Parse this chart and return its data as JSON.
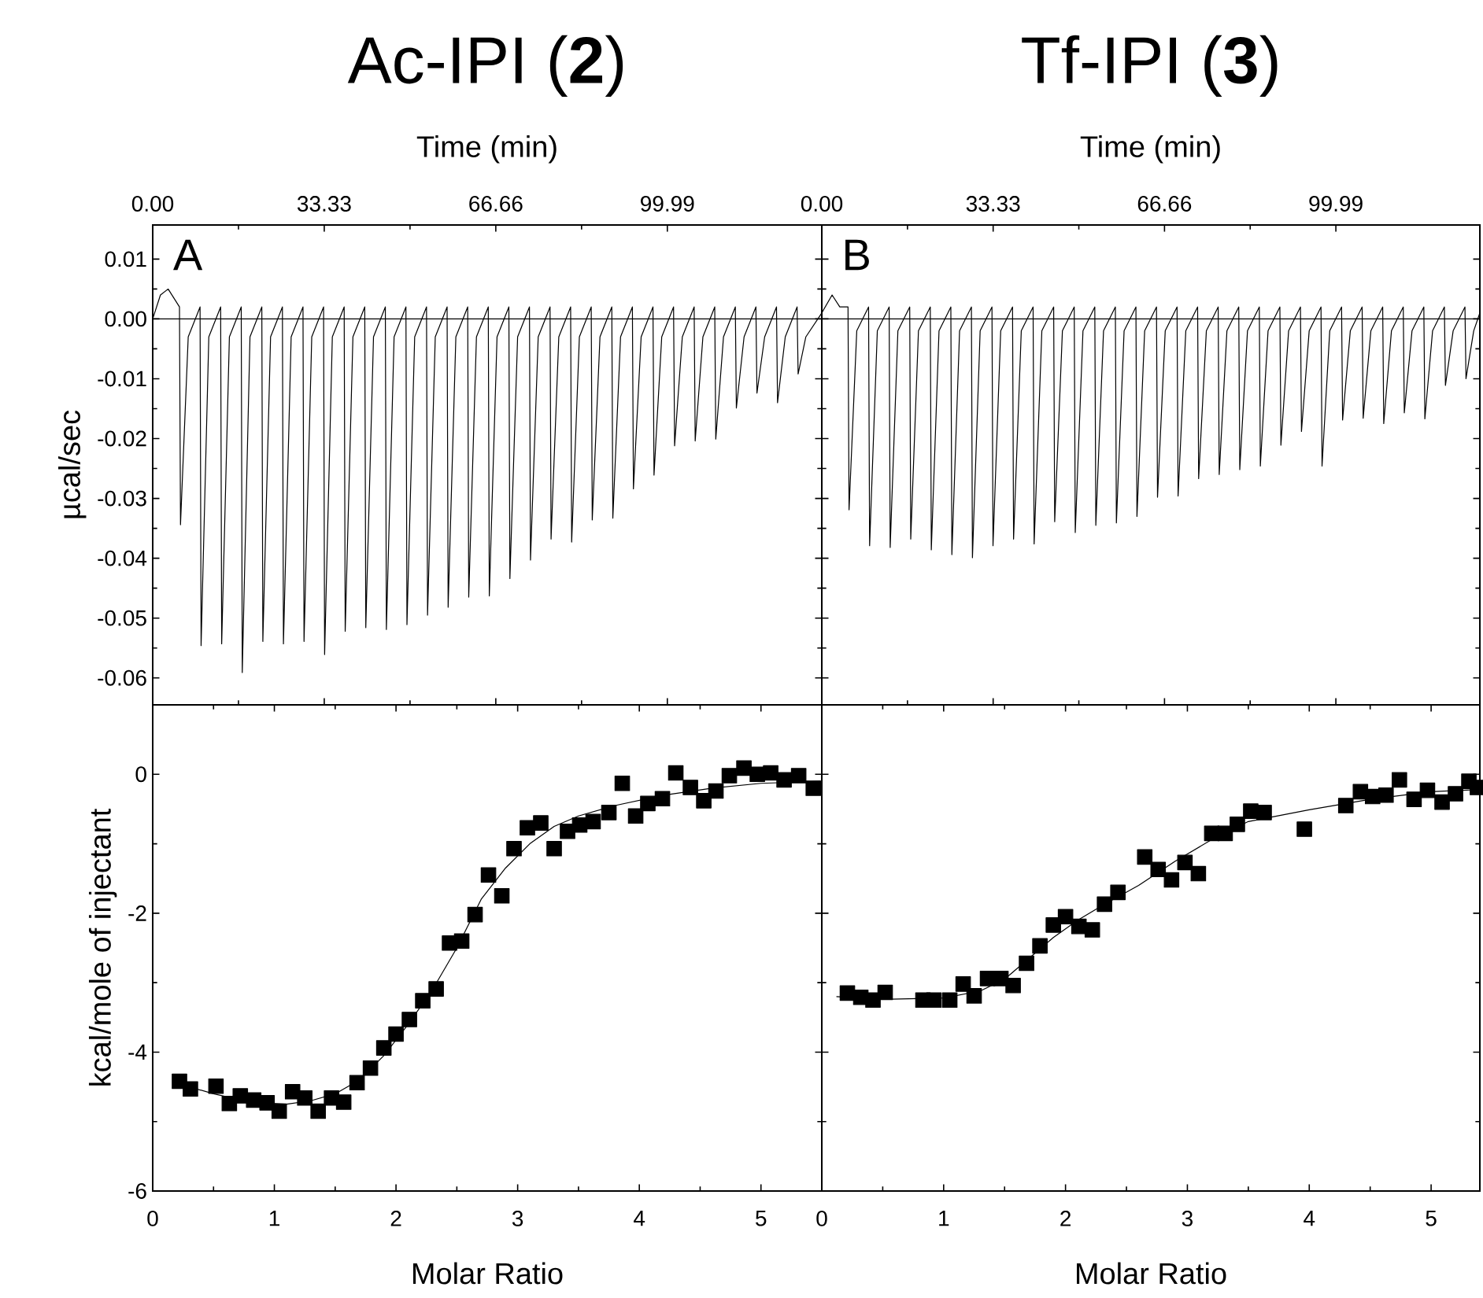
{
  "chart_data": [
    {
      "type": "line",
      "title": "Ac-IPI (**2**)",
      "xlabel": "Time (min)",
      "ylabel": "µcal/sec",
      "annotations": [
        "A"
      ],
      "xlim": [
        0,
        130
      ],
      "xticks": [
        {
          "value": 0,
          "label": "0.00"
        },
        {
          "value": 33.33,
          "label": "33.33"
        },
        {
          "value": 66.66,
          "label": "66.66"
        },
        {
          "value": 99.99,
          "label": "99.99"
        }
      ],
      "ylim": [
        -0.0645,
        0.0157
      ],
      "yticks": [
        {
          "value": 0.01,
          "label": "0.01"
        },
        {
          "value": 0,
          "label": "0.00"
        },
        {
          "value": -0.01,
          "label": "-0.01"
        },
        {
          "value": -0.02,
          "label": "-0.02"
        },
        {
          "value": -0.03,
          "label": "-0.03"
        },
        {
          "value": -0.04,
          "label": "-0.04"
        },
        {
          "value": -0.05,
          "label": "-0.05"
        },
        {
          "value": -0.06,
          "label": "-0.06"
        }
      ],
      "ref_lines": [
        {
          "axis": "y",
          "value": 0,
          "color": "#000000"
        }
      ],
      "series": [
        {
          "color": "#000000",
          "x": [
            0,
            1.5,
            3,
            5.2,
            5.4,
            6.9,
            9.2,
            9.4,
            10.9,
            13.2,
            13.4,
            14.9,
            17.2,
            17.4,
            18.9,
            21.2,
            21.4,
            22.9,
            25.2,
            25.4,
            26.9,
            29.2,
            29.4,
            30.9,
            33.2,
            33.4,
            34.9,
            37.2,
            37.4,
            38.9,
            41.2,
            41.4,
            42.9,
            45.2,
            45.4,
            46.9,
            49.2,
            49.4,
            50.9,
            53.2,
            53.4,
            54.9,
            57.2,
            57.4,
            58.9,
            61.2,
            61.4,
            62.9,
            65.2,
            65.4,
            66.9,
            69.2,
            69.4,
            70.9,
            73.2,
            73.4,
            74.9,
            77.2,
            77.4,
            78.9,
            81.2,
            81.4,
            82.9,
            85.2,
            85.4,
            86.9,
            89.2,
            89.4,
            90.9,
            93.2,
            93.4,
            94.9,
            97.2,
            97.4,
            98.9,
            101.2,
            101.4,
            102.9,
            105.2,
            105.4,
            106.9,
            109.2,
            109.4,
            110.9,
            113.2,
            113.4,
            114.9,
            117.2,
            117.4,
            118.9,
            121.2,
            121.4,
            122.9,
            125.2,
            125.4,
            126.9,
            130
          ],
          "values": [
            0,
            0.004,
            0.005,
            0.002,
            -0.0344,
            -0.003,
            0.002,
            -0.0546,
            -0.003,
            0.002,
            -0.0543,
            -0.003,
            0.002,
            -0.0591,
            -0.003,
            0.002,
            -0.0539,
            -0.003,
            0.002,
            -0.0543,
            -0.003,
            0.002,
            -0.0539,
            -0.003,
            0.002,
            -0.0561,
            -0.003,
            0.002,
            -0.0522,
            -0.003,
            0.002,
            -0.0516,
            -0.003,
            0.002,
            -0.0519,
            -0.003,
            0.002,
            -0.0511,
            -0.003,
            0.002,
            -0.0495,
            -0.003,
            0.002,
            -0.0482,
            -0.003,
            0.002,
            -0.0465,
            -0.003,
            0.002,
            -0.0463,
            -0.003,
            0.002,
            -0.0434,
            -0.003,
            0.002,
            -0.0403,
            -0.003,
            0.002,
            -0.0368,
            -0.003,
            0.002,
            -0.0373,
            -0.003,
            0.002,
            -0.0336,
            -0.003,
            0.002,
            -0.0333,
            -0.003,
            0.002,
            -0.0284,
            -0.003,
            0.002,
            -0.0261,
            -0.003,
            0.002,
            -0.0212,
            -0.003,
            0.002,
            -0.0204,
            -0.003,
            0.002,
            -0.0201,
            -0.003,
            0.002,
            -0.0149,
            -0.003,
            0.002,
            -0.0124,
            -0.003,
            0.002,
            -0.014,
            -0.003,
            0.002,
            -0.0092,
            -0.003,
            0.001
          ]
        }
      ]
    },
    {
      "type": "line",
      "title": "Tf-IPI (**3**)",
      "xlabel": "Time (min)",
      "annotations": [
        "B"
      ],
      "tick_labels": "x",
      "xlim": [
        0,
        128
      ],
      "xticks": [
        {
          "value": 0,
          "label": "0.00"
        },
        {
          "value": 33.33,
          "label": "33.33"
        },
        {
          "value": 66.66,
          "label": "66.66"
        },
        {
          "value": 99.99,
          "label": "99.99"
        }
      ],
      "ylim": [
        -0.0645,
        0.0157
      ],
      "yticks": [
        {
          "value": 0.01,
          "label": null
        },
        {
          "value": 0,
          "label": null
        },
        {
          "value": -0.01,
          "label": null
        },
        {
          "value": -0.02,
          "label": null
        },
        {
          "value": -0.03,
          "label": null
        },
        {
          "value": -0.04,
          "label": null
        },
        {
          "value": -0.05,
          "label": null
        },
        {
          "value": -0.06,
          "label": null
        }
      ],
      "ref_lines": [
        {
          "axis": "y",
          "value": 0,
          "color": "#000000"
        }
      ],
      "series": [
        {
          "color": "#000000",
          "x": [
            0,
            2,
            3.5,
            5.1,
            5.3,
            6.8,
            9.1,
            9.3,
            10.8,
            13.1,
            13.3,
            14.8,
            17.1,
            17.3,
            18.8,
            21.1,
            21.3,
            22.8,
            25.1,
            25.3,
            26.8,
            29.1,
            29.3,
            30.8,
            33.1,
            33.3,
            34.8,
            37.1,
            37.3,
            38.8,
            41.1,
            41.3,
            42.8,
            45.1,
            45.3,
            46.8,
            49.1,
            49.3,
            50.8,
            53.1,
            53.3,
            54.8,
            57.1,
            57.3,
            58.8,
            61.1,
            61.3,
            62.8,
            65.1,
            65.3,
            66.8,
            69.1,
            69.3,
            70.8,
            73.1,
            73.3,
            74.8,
            77.1,
            77.3,
            78.8,
            81.1,
            81.3,
            82.8,
            85.1,
            85.3,
            86.8,
            89.1,
            89.3,
            90.8,
            93.1,
            93.3,
            94.8,
            97.1,
            97.3,
            98.8,
            101.1,
            101.3,
            102.8,
            105.1,
            105.3,
            106.8,
            109.1,
            109.3,
            110.8,
            113.1,
            113.3,
            114.8,
            117.1,
            117.3,
            118.8,
            121.1,
            121.3,
            122.8,
            125.1,
            125.3,
            126.8,
            128
          ],
          "values": [
            0.001,
            0.004,
            0.002,
            0.002,
            -0.0319,
            -0.002,
            0.002,
            -0.0379,
            -0.002,
            0.002,
            -0.0382,
            -0.002,
            0.002,
            -0.0368,
            -0.002,
            0.002,
            -0.0386,
            -0.002,
            0.002,
            -0.0394,
            -0.002,
            0.002,
            -0.0399,
            -0.002,
            0.002,
            -0.0379,
            -0.002,
            0.002,
            -0.0368,
            -0.002,
            0.002,
            -0.0376,
            -0.002,
            0.002,
            -0.0339,
            -0.002,
            0.002,
            -0.0357,
            -0.002,
            0.002,
            -0.0345,
            -0.002,
            0.002,
            -0.0341,
            -0.002,
            0.002,
            -0.033,
            -0.002,
            0.002,
            -0.0298,
            -0.002,
            0.002,
            -0.0296,
            -0.002,
            0.002,
            -0.0267,
            -0.002,
            0.002,
            -0.026,
            -0.002,
            0.002,
            -0.0252,
            -0.002,
            0.002,
            -0.0246,
            -0.002,
            0.002,
            -0.0211,
            -0.002,
            0.002,
            -0.0188,
            -0.002,
            0.002,
            -0.0246,
            -0.002,
            0.002,
            -0.0169,
            -0.002,
            0.002,
            -0.0166,
            -0.002,
            0.002,
            -0.0175,
            -0.002,
            0.002,
            -0.0157,
            -0.002,
            0.002,
            -0.0167,
            -0.002,
            0.002,
            -0.0111,
            -0.002,
            0.002,
            -0.01,
            -0.002,
            0.001
          ]
        }
      ]
    },
    {
      "type": "scatter",
      "xlabel": "Molar Ratio",
      "ylabel": "kcal/mole of injectant",
      "marker": "square",
      "xlim": [
        0,
        5.5
      ],
      "xticks": [
        0,
        1,
        2,
        3,
        4,
        5
      ],
      "ylim": [
        -6,
        1
      ],
      "yticks": [
        -6,
        -4,
        -2,
        0
      ],
      "series": [
        {
          "color": "#000000",
          "x": [
            0.22,
            0.31,
            0.52,
            0.63,
            0.72,
            0.83,
            0.94,
            1.04,
            1.15,
            1.25,
            1.36,
            1.47,
            1.57,
            1.68,
            1.79,
            1.9,
            2.0,
            2.11,
            2.22,
            2.33,
            2.44,
            2.54,
            2.65,
            2.76,
            2.87,
            2.97,
            3.08,
            3.19,
            3.3,
            3.41,
            3.51,
            3.62,
            3.75,
            3.86,
            3.97,
            4.07,
            4.19,
            4.3,
            4.42,
            4.53,
            4.63,
            4.74,
            4.86,
            4.97,
            5.08,
            5.19,
            5.31,
            5.43
          ],
          "values": [
            -4.42,
            -4.53,
            -4.49,
            -4.74,
            -4.63,
            -4.69,
            -4.73,
            -4.85,
            -4.57,
            -4.66,
            -4.85,
            -4.66,
            -4.72,
            -4.44,
            -4.23,
            -3.94,
            -3.74,
            -3.53,
            -3.26,
            -3.09,
            -2.43,
            -2.4,
            -2.02,
            -1.45,
            -1.75,
            -1.07,
            -0.77,
            -0.7,
            -1.07,
            -0.82,
            -0.73,
            -0.68,
            -0.55,
            -0.13,
            -0.6,
            -0.42,
            -0.35,
            0.02,
            -0.19,
            -0.38,
            -0.24,
            -0.02,
            0.09,
            0.0,
            0.02,
            -0.08,
            -0.02,
            -0.2
          ]
        },
        {
          "type": "line",
          "marker": "none",
          "color": "#000000",
          "x": [
            0.2,
            0.5,
            0.8,
            1.1,
            1.3,
            1.5,
            1.7,
            1.9,
            2.1,
            2.3,
            2.5,
            2.7,
            2.9,
            3.1,
            3.3,
            3.5,
            3.8,
            4.2,
            4.6,
            5.0,
            5.5
          ],
          "values": [
            -4.45,
            -4.6,
            -4.72,
            -4.75,
            -4.7,
            -4.6,
            -4.4,
            -4.05,
            -3.6,
            -3.1,
            -2.5,
            -1.8,
            -1.35,
            -1.0,
            -0.75,
            -0.6,
            -0.45,
            -0.3,
            -0.2,
            -0.13,
            -0.1
          ]
        }
      ]
    },
    {
      "type": "scatter",
      "xlabel": "Molar Ratio",
      "marker": "square",
      "tick_labels": "x",
      "xlim": [
        0,
        5.4
      ],
      "xticks": [
        0,
        1,
        2,
        3,
        4,
        5
      ],
      "ylim": [
        -6,
        1
      ],
      "yticks": [
        {
          "value": -6,
          "label": null
        },
        {
          "value": -4,
          "label": null
        },
        {
          "value": -2,
          "label": null
        },
        {
          "value": 0,
          "label": null
        }
      ],
      "series": [
        {
          "color": "#000000",
          "x": [
            0.21,
            0.32,
            0.42,
            0.52,
            0.83,
            0.92,
            1.05,
            1.16,
            1.25,
            1.36,
            1.47,
            1.57,
            1.68,
            1.79,
            1.9,
            2.0,
            2.11,
            2.22,
            2.32,
            2.43,
            2.65,
            2.76,
            2.87,
            2.98,
            3.09,
            3.2,
            3.31,
            3.41,
            3.52,
            3.63,
            3.96,
            4.3,
            4.42,
            4.52,
            4.63,
            4.74,
            4.86,
            4.97,
            5.09,
            5.2,
            5.31,
            5.38
          ],
          "values": [
            -3.15,
            -3.21,
            -3.25,
            -3.14,
            -3.25,
            -3.25,
            -3.25,
            -3.02,
            -3.19,
            -2.94,
            -2.94,
            -3.04,
            -2.72,
            -2.47,
            -2.17,
            -2.05,
            -2.19,
            -2.24,
            -1.87,
            -1.7,
            -1.19,
            -1.37,
            -1.52,
            -1.27,
            -1.43,
            -0.85,
            -0.85,
            -0.72,
            -0.53,
            -0.55,
            -0.79,
            -0.45,
            -0.25,
            -0.32,
            -0.3,
            -0.08,
            -0.36,
            -0.23,
            -0.4,
            -0.28,
            -0.1,
            -0.19
          ]
        },
        {
          "type": "line",
          "marker": "none",
          "color": "#000000",
          "x": [
            0.12,
            0.5,
            1.0,
            1.3,
            1.5,
            1.7,
            1.9,
            2.1,
            2.3,
            2.6,
            2.9,
            3.2,
            3.5,
            4.0,
            4.5,
            5.0,
            5.4
          ],
          "values": [
            -3.2,
            -3.24,
            -3.22,
            -3.12,
            -2.95,
            -2.65,
            -2.35,
            -2.1,
            -1.89,
            -1.6,
            -1.25,
            -0.94,
            -0.68,
            -0.51,
            -0.36,
            -0.25,
            -0.22
          ]
        }
      ]
    }
  ]
}
